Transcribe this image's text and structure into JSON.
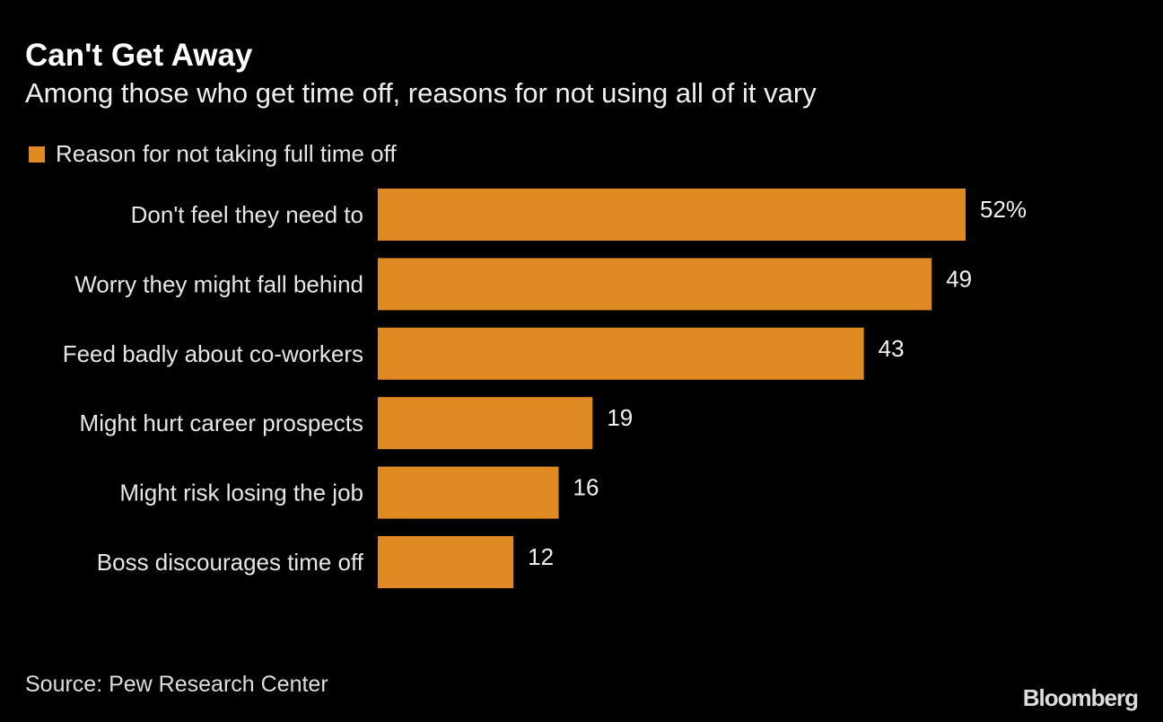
{
  "chart_data": {
    "type": "bar",
    "orientation": "horizontal",
    "title": "Can't Get Away",
    "subtitle": "Among those who get time off, reasons for not using all of it vary",
    "legend": [
      {
        "label": "Reason for not taking full time off",
        "color": "#E08A24"
      }
    ],
    "legend_placement": "top-left",
    "categories": [
      "Don't feel they need to",
      "Worry they might fall behind",
      "Feed badly about co-workers",
      "Might hurt career prospects",
      "Might risk losing the job",
      "Boss discourages time off"
    ],
    "values": [
      52,
      49,
      43,
      19,
      16,
      12
    ],
    "value_labels": [
      "52%",
      "49",
      "43",
      "19",
      "16",
      "12"
    ],
    "xlim": [
      0,
      60
    ],
    "grid": false,
    "source": "Source: Pew Research Center",
    "brand": "Bloomberg"
  }
}
